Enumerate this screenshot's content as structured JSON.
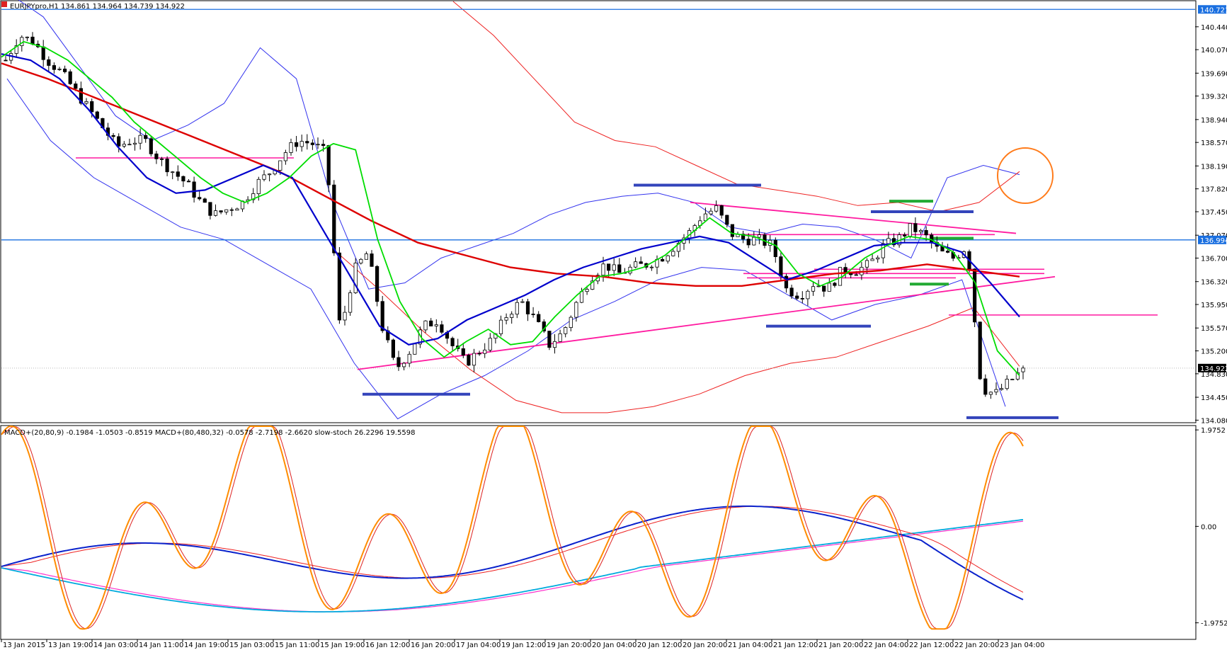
{
  "header": {
    "price_title": "EURJPYpro,H1  134.861 134.964 134.739 134.922",
    "indicator_title": "MACD+(20,80,9) -0.1984 -1.0503 -0.8519  MACD+(80,480,32) -0.0578 -2.7198 -2.6620  slow-stoch 26.2296 19.5598"
  },
  "colors": {
    "candle": "#000000",
    "ma_fast": "#00dd00",
    "ma_mid": "#0000cc",
    "ma_slow": "#dd0000",
    "bb_blue": "#3333ee",
    "bb_red": "#ee2222",
    "support": "#3344bb",
    "resistance_pink": "#ff1aa0",
    "green_marks": "#22aa33",
    "hline_blue": "#1a6fe0",
    "circle": "#ff7b1a",
    "stoch": "#ff8c00",
    "macd_blue": "#0a22cc",
    "macd_cyan": "#00aadd",
    "macd_magenta": "#ff33cc"
  },
  "chart_data": [
    {
      "type": "candlestick",
      "symbol": "EURJPYpro",
      "timeframe": "H1",
      "ohlc_last": {
        "open": 134.861,
        "high": 134.964,
        "low": 134.739,
        "close": 134.922
      },
      "yaxis_ticks": [
        140.44,
        140.07,
        139.69,
        139.32,
        138.94,
        138.57,
        138.19,
        137.82,
        137.45,
        137.07,
        136.7,
        136.32,
        135.95,
        135.57,
        135.2,
        134.83,
        134.45,
        134.08
      ],
      "ylim": [
        134.05,
        140.85
      ],
      "price_tags": [
        {
          "label": "140.721",
          "value": 140.721
        },
        {
          "label": "136.994",
          "value": 136.994
        },
        {
          "label": "134.922",
          "value": 134.922
        }
      ],
      "xaxis_ticks": [
        "13 Jan 2015",
        "13 Jan 19:00",
        "14 Jan 03:00",
        "14 Jan 11:00",
        "14 Jan 19:00",
        "15 Jan 03:00",
        "15 Jan 11:00",
        "15 Jan 19:00",
        "16 Jan 12:00",
        "16 Jan 20:00",
        "17 Jan 04:00",
        "19 Jan 12:00",
        "19 Jan 20:00",
        "20 Jan 04:00",
        "20 Jan 12:00",
        "20 Jan 20:00",
        "21 Jan 04:00",
        "21 Jan 12:00",
        "21 Jan 20:00",
        "22 Jan 04:00",
        "22 Jan 12:00",
        "22 Jan 20:00",
        "23 Jan 04:00"
      ],
      "close_path": [
        139.9,
        140.3,
        140.2,
        139.9,
        139.7,
        139.4,
        139.1,
        138.8,
        138.5,
        138.6,
        138.6,
        138.3,
        138.1,
        137.9,
        137.6,
        137.4,
        137.5,
        137.6,
        137.9,
        138.1,
        138.4,
        138.6,
        138.55,
        138.4,
        135.5,
        136.5,
        136.8,
        135.6,
        134.9,
        135.2,
        135.6,
        135.7,
        135.3,
        135.0,
        135.2,
        135.4,
        135.8,
        136.0,
        135.7,
        135.3,
        135.5,
        136.0,
        136.4,
        136.6,
        136.45,
        136.55,
        136.6,
        136.7,
        136.9,
        137.1,
        137.4,
        137.5,
        137.1,
        137.0,
        137.0,
        136.9,
        136.2,
        136.1,
        136.3,
        136.2,
        136.5,
        136.5,
        136.6,
        136.9,
        137.0,
        137.2,
        137.05,
        136.8,
        136.7,
        136.9,
        134.6,
        134.5,
        134.7,
        134.9
      ],
      "ma_fast": [
        139.95,
        140.2,
        140.1,
        139.9,
        139.6,
        139.3,
        138.9,
        138.6,
        138.3,
        138.0,
        137.75,
        137.6,
        137.75,
        138.0,
        138.35,
        138.55,
        138.45,
        137.0,
        136.0,
        135.4,
        135.1,
        135.35,
        135.55,
        135.3,
        135.35,
        135.75,
        136.1,
        136.4,
        136.45,
        136.55,
        136.75,
        137.05,
        137.35,
        137.1,
        137.05,
        136.9,
        136.45,
        136.25,
        136.4,
        136.7,
        136.9,
        137.05,
        137.0,
        136.8,
        136.3,
        135.2,
        134.8
      ],
      "ma_mid": [
        140.0,
        139.9,
        139.6,
        139.1,
        138.5,
        138.0,
        137.75,
        137.8,
        138.0,
        138.2,
        138.0,
        137.2,
        136.4,
        135.6,
        135.3,
        135.4,
        135.7,
        135.9,
        136.1,
        136.35,
        136.55,
        136.7,
        136.85,
        136.95,
        137.05,
        136.95,
        136.65,
        136.35,
        136.5,
        136.7,
        136.9,
        136.95,
        136.95,
        136.8,
        136.3,
        135.75
      ],
      "ma_slow": [
        139.85,
        139.6,
        139.3,
        139.0,
        138.7,
        138.4,
        138.1,
        137.7,
        137.3,
        136.95,
        136.75,
        136.55,
        136.45,
        136.4,
        136.3,
        136.25,
        136.25,
        136.35,
        136.45,
        136.5,
        136.6,
        136.5,
        136.4
      ],
      "bollinger_upper": [
        141.0,
        140.6,
        139.8,
        139.0,
        138.6,
        138.85,
        139.2,
        140.1,
        139.6,
        137.6,
        136.2,
        136.3,
        136.7,
        136.9,
        137.1,
        137.4,
        137.6,
        137.7,
        137.75,
        137.6,
        137.2,
        137.1,
        137.25,
        137.2,
        137.0,
        136.7,
        138.0,
        138.2,
        138.05
      ],
      "bollinger_lower": [
        139.6,
        138.6,
        138.0,
        137.6,
        137.2,
        137.0,
        136.6,
        136.2,
        135.0,
        134.1,
        134.5,
        134.8,
        135.2,
        135.7,
        136.0,
        136.35,
        136.55,
        136.5,
        136.1,
        135.7,
        135.95,
        136.1,
        136.35,
        134.3
      ],
      "envelope_red": [
        140.85,
        140.3,
        139.6,
        138.9,
        138.6,
        138.5,
        138.2,
        137.9,
        137.8,
        137.7,
        137.55,
        137.6,
        137.45,
        137.6,
        138.1
      ],
      "envelope_red_lower": [
        136.85,
        136.2,
        135.5,
        134.9,
        134.4,
        134.2,
        134.2,
        134.3,
        134.5,
        134.8,
        135.0,
        135.1,
        135.35,
        135.6,
        135.9,
        134.95
      ],
      "support_lines": [
        137.88,
        137.45,
        137.08,
        136.38,
        135.6,
        134.5,
        134.12
      ],
      "trend_lines": [
        {
          "from": 134.9,
          "to": 136.4
        },
        {
          "from": 137.6,
          "to": 137.1
        }
      ],
      "hlines_pink": [
        138.32,
        136.52,
        136.45,
        135.78
      ],
      "green_marks": [
        137.62,
        137.02,
        136.28
      ]
    },
    {
      "type": "line",
      "yaxis_ticks": [
        1.9752,
        0.0,
        -1.9752
      ],
      "tick_labels": [
        "1.9752",
        "0.00",
        "-1.9752"
      ],
      "ylim": [
        -2.3,
        2.05
      ],
      "last_values": {
        "macd_fast": -0.1984,
        "macd_fast_signal": -1.0503,
        "macd_fast_hist": -0.8519,
        "macd_slow": -0.0578,
        "macd_slow_signal": -2.7198,
        "macd_slow_hist": -2.662,
        "stoch_k": 26.2296,
        "stoch_d": 19.5598
      }
    }
  ]
}
